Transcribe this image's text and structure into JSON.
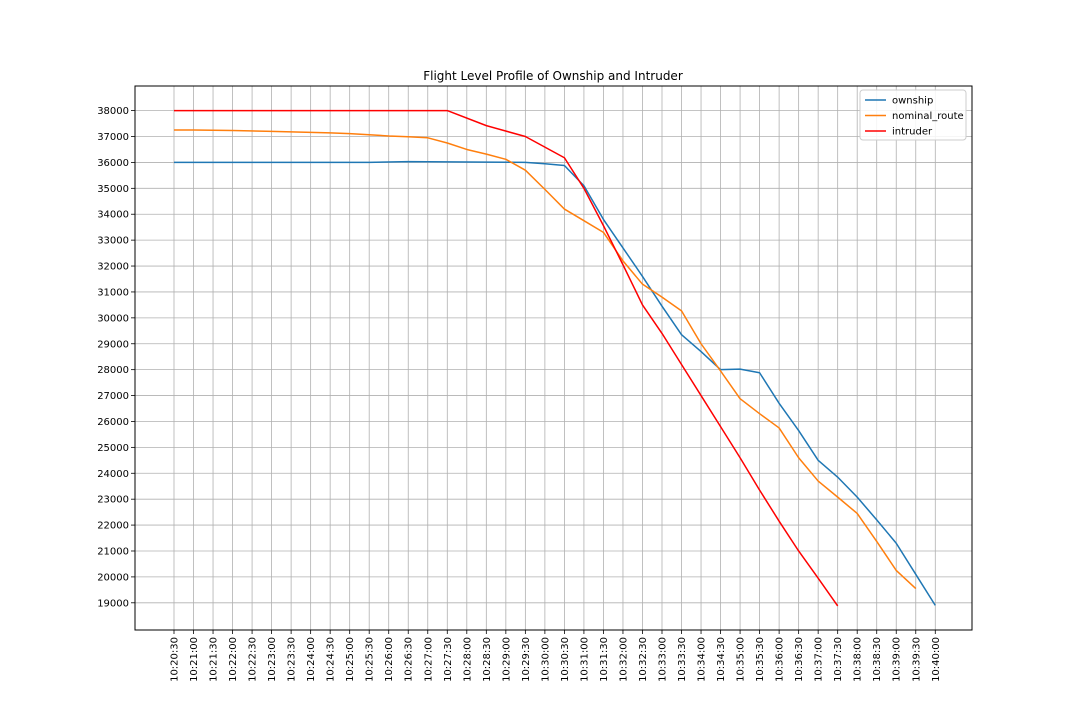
{
  "chart_data": {
    "type": "line",
    "title": "Flight Level Profile of Ownship and Intruder",
    "xlabel": "",
    "ylabel": "",
    "grid": true,
    "legend_position": "top-right",
    "x_ticks": [
      "10:20:30",
      "10:21:00",
      "10:21:30",
      "10:22:00",
      "10:22:30",
      "10:23:00",
      "10:23:30",
      "10:24:00",
      "10:24:30",
      "10:25:00",
      "10:25:30",
      "10:26:00",
      "10:26:30",
      "10:27:00",
      "10:27:30",
      "10:28:00",
      "10:28:30",
      "10:29:00",
      "10:29:30",
      "10:30:00",
      "10:30:30",
      "10:31:00",
      "10:31:30",
      "10:32:00",
      "10:32:30",
      "10:33:00",
      "10:33:30",
      "10:34:00",
      "10:34:30",
      "10:35:00",
      "10:35:30",
      "10:36:00",
      "10:36:30",
      "10:37:00",
      "10:37:30",
      "10:38:00",
      "10:38:30",
      "10:39:00",
      "10:39:30",
      "10:40:00"
    ],
    "y_ticks": [
      19000,
      20000,
      21000,
      22000,
      23000,
      24000,
      25000,
      26000,
      27000,
      28000,
      29000,
      30000,
      31000,
      32000,
      33000,
      34000,
      35000,
      36000,
      37000,
      38000
    ],
    "ylim": [
      17950,
      38950
    ],
    "series": [
      {
        "name": "ownship",
        "color": "#1f77b4",
        "points": [
          [
            "10:20:30",
            36000
          ],
          [
            "10:21:00",
            36000
          ],
          [
            "10:22:00",
            36000
          ],
          [
            "10:23:00",
            36000
          ],
          [
            "10:24:00",
            36000
          ],
          [
            "10:25:00",
            36000
          ],
          [
            "10:25:30",
            36000
          ],
          [
            "10:26:30",
            36030
          ],
          [
            "10:27:30",
            36020
          ],
          [
            "10:28:30",
            36010
          ],
          [
            "10:29:30",
            36000
          ],
          [
            "10:30:00",
            35950
          ],
          [
            "10:30:30",
            35880
          ],
          [
            "10:31:00",
            35100
          ],
          [
            "10:31:30",
            33800
          ],
          [
            "10:32:00",
            32700
          ],
          [
            "10:32:30",
            31600
          ],
          [
            "10:33:00",
            30450
          ],
          [
            "10:33:30",
            29350
          ],
          [
            "10:34:00",
            28700
          ],
          [
            "10:34:30",
            28000
          ],
          [
            "10:35:00",
            28020
          ],
          [
            "10:35:30",
            27880
          ],
          [
            "10:36:00",
            26700
          ],
          [
            "10:36:30",
            25650
          ],
          [
            "10:37:00",
            24500
          ],
          [
            "10:37:30",
            23850
          ],
          [
            "10:38:00",
            23080
          ],
          [
            "10:38:30",
            22200
          ],
          [
            "10:39:00",
            21300
          ],
          [
            "10:39:30",
            20100
          ],
          [
            "10:40:00",
            18900
          ]
        ]
      },
      {
        "name": "nominal_route",
        "color": "#ff7f0e",
        "points": [
          [
            "10:20:30",
            37250
          ],
          [
            "10:21:00",
            37250
          ],
          [
            "10:22:00",
            37230
          ],
          [
            "10:23:00",
            37200
          ],
          [
            "10:24:00",
            37160
          ],
          [
            "10:24:30",
            37140
          ],
          [
            "10:25:00",
            37110
          ],
          [
            "10:25:30",
            37070
          ],
          [
            "10:26:00",
            37020
          ],
          [
            "10:26:30",
            36990
          ],
          [
            "10:27:00",
            36950
          ],
          [
            "10:27:30",
            36750
          ],
          [
            "10:28:00",
            36500
          ],
          [
            "10:28:30",
            36320
          ],
          [
            "10:29:00",
            36120
          ],
          [
            "10:29:30",
            35700
          ],
          [
            "10:30:00",
            34960
          ],
          [
            "10:30:30",
            34200
          ],
          [
            "10:31:00",
            33750
          ],
          [
            "10:31:30",
            33300
          ],
          [
            "10:32:00",
            32200
          ],
          [
            "10:32:30",
            31300
          ],
          [
            "10:33:00",
            30800
          ],
          [
            "10:33:30",
            30270
          ],
          [
            "10:34:00",
            29000
          ],
          [
            "10:34:30",
            27950
          ],
          [
            "10:35:00",
            26880
          ],
          [
            "10:35:30",
            26300
          ],
          [
            "10:36:00",
            25750
          ],
          [
            "10:36:30",
            24600
          ],
          [
            "10:37:00",
            23700
          ],
          [
            "10:37:30",
            23080
          ],
          [
            "10:38:00",
            22450
          ],
          [
            "10:38:30",
            21370
          ],
          [
            "10:39:00",
            20250
          ],
          [
            "10:39:30",
            19550
          ]
        ]
      },
      {
        "name": "intruder",
        "color": "#ff0000",
        "points": [
          [
            "10:20:30",
            38000
          ],
          [
            "10:21:30",
            38000
          ],
          [
            "10:22:30",
            38000
          ],
          [
            "10:23:30",
            38000
          ],
          [
            "10:24:30",
            38000
          ],
          [
            "10:25:30",
            38000
          ],
          [
            "10:26:30",
            38000
          ],
          [
            "10:27:30",
            38000
          ],
          [
            "10:28:30",
            37420
          ],
          [
            "10:29:30",
            37000
          ],
          [
            "10:30:30",
            36180
          ],
          [
            "10:31:00",
            35000
          ],
          [
            "10:31:30",
            33560
          ],
          [
            "10:32:00",
            32050
          ],
          [
            "10:32:30",
            30500
          ],
          [
            "10:33:00",
            29400
          ],
          [
            "10:33:30",
            28200
          ],
          [
            "10:34:00",
            27000
          ],
          [
            "10:34:30",
            25800
          ],
          [
            "10:35:00",
            24600
          ],
          [
            "10:35:30",
            23350
          ],
          [
            "10:36:00",
            22150
          ],
          [
            "10:36:30",
            21000
          ],
          [
            "10:37:00",
            19950
          ],
          [
            "10:37:30",
            18880
          ]
        ]
      }
    ]
  }
}
